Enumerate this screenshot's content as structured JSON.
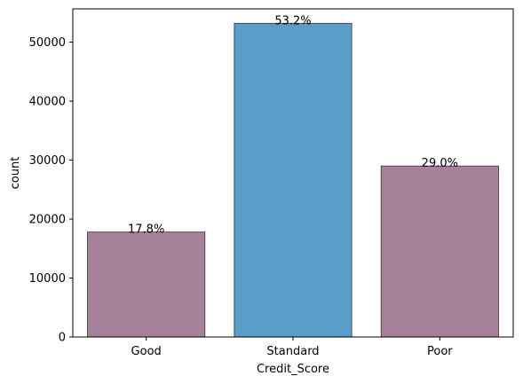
{
  "chart_data": {
    "type": "bar",
    "categories": [
      "Good",
      "Standard",
      "Poor"
    ],
    "values": [
      17800,
      53200,
      29000
    ],
    "data_labels": [
      "17.8%",
      "53.2%",
      "29.0%"
    ],
    "colors": [
      "#a6819a",
      "#5b9dc9",
      "#a6819a"
    ],
    "edge_color": "#333333",
    "xlabel": "Credit_Score",
    "ylabel": "count",
    "ylim": [
      0,
      55650
    ],
    "yticks": [
      0,
      10000,
      20000,
      30000,
      40000,
      50000
    ],
    "grid": false,
    "legend": "none"
  }
}
